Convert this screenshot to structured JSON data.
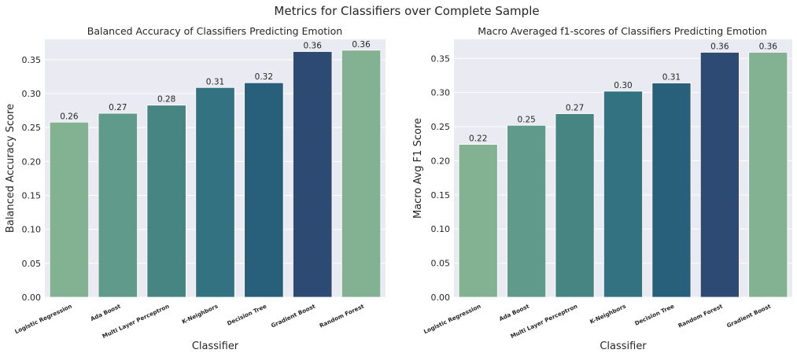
{
  "suptitle": "Metrics for Classifiers over Complete Sample",
  "chart_data": [
    {
      "type": "bar",
      "title": "Balanced Accuracy of Classifiers Predicting Emotion",
      "xlabel": "Classifier",
      "ylabel": "Balanced Accuracy Score",
      "ylim": [
        0,
        0.38
      ],
      "yticks": [
        0.0,
        0.05,
        0.1,
        0.15,
        0.2,
        0.25,
        0.3,
        0.35
      ],
      "ytick_labels": [
        "0.00",
        "0.05",
        "0.10",
        "0.15",
        "0.20",
        "0.25",
        "0.30",
        "0.35"
      ],
      "categories": [
        "Logistic Regression",
        "Ada Boost",
        "Multi Layer Perceptron",
        "K-Neighbors",
        "Decision Tree",
        "Gradient Boost",
        "Random Forest"
      ],
      "values": [
        0.258,
        0.271,
        0.283,
        0.309,
        0.316,
        0.362,
        0.364
      ],
      "data_labels": [
        "0.26",
        "0.27",
        "0.28",
        "0.31",
        "0.32",
        "0.36",
        "0.36"
      ],
      "colors": [
        "#82b292",
        "#5f9a8a",
        "#478583",
        "#337280",
        "#285f7a",
        "#2d4a73",
        "#82b292"
      ],
      "grid": true
    },
    {
      "type": "bar",
      "title": "Macro Averaged f1-scores of Classifiers Predicting Emotion",
      "xlabel": "Classifier",
      "ylabel": "Macro Avg F1 Score",
      "ylim": [
        0,
        0.378
      ],
      "yticks": [
        0.0,
        0.05,
        0.1,
        0.15,
        0.2,
        0.25,
        0.3,
        0.35
      ],
      "ytick_labels": [
        "0.00",
        "0.05",
        "0.10",
        "0.15",
        "0.20",
        "0.25",
        "0.30",
        "0.35"
      ],
      "categories": [
        "Logistic Regression",
        "Ada Boost",
        "Multi Layer Perceptron",
        "K-Neighbors",
        "Decision Tree",
        "Random Forest",
        "Gradient Boost"
      ],
      "values": [
        0.224,
        0.252,
        0.269,
        0.302,
        0.314,
        0.359,
        0.359
      ],
      "data_labels": [
        "0.22",
        "0.25",
        "0.27",
        "0.30",
        "0.31",
        "0.36",
        "0.36"
      ],
      "colors": [
        "#82b292",
        "#5f9a8a",
        "#478583",
        "#337280",
        "#285f7a",
        "#2d4a73",
        "#82b292"
      ],
      "grid": true
    }
  ]
}
